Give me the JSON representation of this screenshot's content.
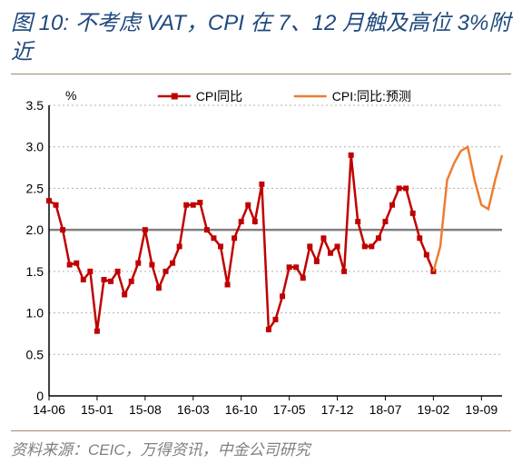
{
  "title": "图 10: 不考虑 VAT，CPI 在 7、12 月触及高位 3%附近",
  "source": "资料来源：CEIC，万得资讯，中金公司研究",
  "chart": {
    "type": "line",
    "y_unit_label": "%",
    "background_color": "#ffffff",
    "axis_color": "#000000",
    "grid_color": "#b0b0b0",
    "grid_dash": "2,3",
    "reference_line_y": 2.0,
    "reference_line_color": "#808080",
    "reference_line_width": 2.5,
    "ylim": [
      0,
      3.5
    ],
    "ytick_step": 0.5,
    "yticks": [
      "0",
      "0.5",
      "1.0",
      "1.5",
      "2.0",
      "2.5",
      "3.0",
      "3.5"
    ],
    "x_categories": [
      "14-06",
      "14-07",
      "14-08",
      "14-09",
      "14-10",
      "14-11",
      "14-12",
      "15-01",
      "15-02",
      "15-03",
      "15-04",
      "15-05",
      "15-06",
      "15-07",
      "15-08",
      "15-09",
      "15-10",
      "15-11",
      "15-12",
      "16-01",
      "16-02",
      "16-03",
      "16-04",
      "16-05",
      "16-06",
      "16-07",
      "16-08",
      "16-09",
      "16-10",
      "16-11",
      "16-12",
      "17-01",
      "17-02",
      "17-03",
      "17-04",
      "17-05",
      "17-06",
      "17-07",
      "17-08",
      "17-09",
      "17-10",
      "17-11",
      "17-12",
      "18-01",
      "18-02",
      "18-03",
      "18-04",
      "18-05",
      "18-06",
      "18-07",
      "18-08",
      "18-09",
      "18-10",
      "18-11",
      "18-12",
      "19-01",
      "19-02",
      "19-03",
      "19-04",
      "19-05",
      "19-06",
      "19-07",
      "19-08",
      "19-09",
      "19-10",
      "19-11",
      "19-12"
    ],
    "x_tick_labels": [
      "14-06",
      "15-01",
      "15-08",
      "16-03",
      "16-10",
      "17-05",
      "17-12",
      "18-07",
      "19-02",
      "19-09"
    ],
    "x_tick_indices": [
      0,
      7,
      14,
      21,
      28,
      35,
      42,
      49,
      56,
      63
    ],
    "legend": {
      "series1": "CPI同比",
      "series2": "CPI:同比:预测"
    },
    "series": [
      {
        "name_key": "series1",
        "color": "#c00000",
        "line_width": 2.5,
        "marker": "square",
        "marker_size": 5,
        "x_start": 0,
        "values": [
          2.35,
          2.3,
          2.0,
          1.58,
          1.6,
          1.4,
          1.5,
          0.78,
          1.4,
          1.38,
          1.5,
          1.22,
          1.38,
          1.6,
          2.0,
          1.58,
          1.3,
          1.5,
          1.6,
          1.8,
          2.3,
          2.3,
          2.33,
          2.0,
          1.9,
          1.8,
          1.34,
          1.9,
          2.1,
          2.3,
          2.1,
          2.55,
          0.8,
          0.92,
          1.2,
          1.55,
          1.55,
          1.42,
          1.8,
          1.62,
          1.9,
          1.72,
          1.8,
          1.5,
          2.9,
          2.1,
          1.8,
          1.8,
          1.9,
          2.1,
          2.3,
          2.5,
          2.5,
          2.2,
          1.9,
          1.7,
          1.5
        ]
      },
      {
        "name_key": "series2",
        "color": "#ed7d31",
        "line_width": 2.5,
        "marker": "none",
        "marker_size": 0,
        "x_start": 56,
        "values": [
          1.5,
          1.8,
          2.6,
          2.8,
          2.95,
          3.0,
          2.6,
          2.3,
          2.25,
          2.6,
          2.9
        ]
      }
    ],
    "fonts": {
      "title_size": 24,
      "tick_size": 14,
      "legend_size": 14
    }
  }
}
